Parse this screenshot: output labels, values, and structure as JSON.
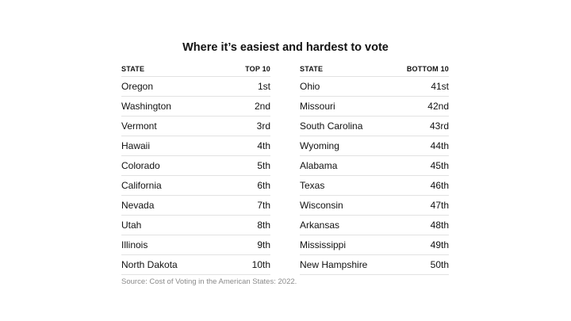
{
  "chart_data": {
    "type": "table",
    "title": "Where it’s easiest and hardest to vote",
    "tables": [
      {
        "headers": [
          "STATE",
          "TOP 10"
        ],
        "rows": [
          [
            "Oregon",
            "1st"
          ],
          [
            "Washington",
            "2nd"
          ],
          [
            "Vermont",
            "3rd"
          ],
          [
            "Hawaii",
            "4th"
          ],
          [
            "Colorado",
            "5th"
          ],
          [
            "California",
            "6th"
          ],
          [
            "Nevada",
            "7th"
          ],
          [
            "Utah",
            "8th"
          ],
          [
            "Illinois",
            "9th"
          ],
          [
            "North Dakota",
            "10th"
          ]
        ]
      },
      {
        "headers": [
          "STATE",
          "BOTTOM 10"
        ],
        "rows": [
          [
            "Ohio",
            "41st"
          ],
          [
            "Missouri",
            "42nd"
          ],
          [
            "South Carolina",
            "43rd"
          ],
          [
            "Wyoming",
            "44th"
          ],
          [
            "Alabama",
            "45th"
          ],
          [
            "Texas",
            "46th"
          ],
          [
            "Wisconsin",
            "47th"
          ],
          [
            "Arkansas",
            "48th"
          ],
          [
            "Mississippi",
            "49th"
          ],
          [
            "New Hampshire",
            "50th"
          ]
        ]
      }
    ],
    "source": "Source: Cost of Voting in the American States: 2022."
  }
}
